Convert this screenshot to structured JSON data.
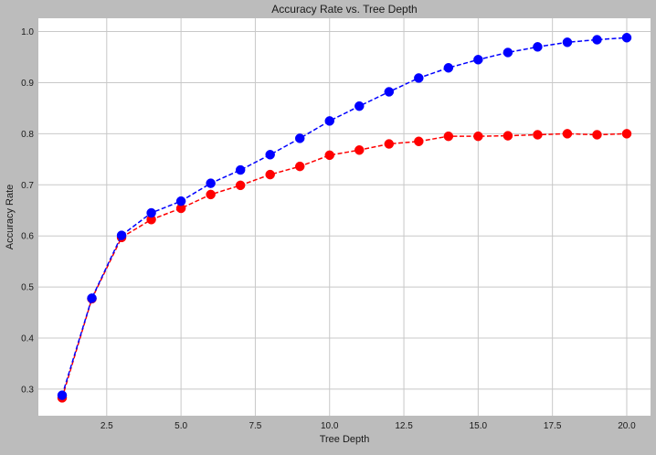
{
  "chart_data": {
    "type": "line",
    "title": "Accuracy Rate vs. Tree Depth",
    "xlabel": "Tree Depth",
    "ylabel": "Accuracy Rate",
    "xlim": [
      0.2,
      20.8
    ],
    "ylim": [
      0.248,
      1.026
    ],
    "xticks": [
      2.5,
      5.0,
      7.5,
      10.0,
      12.5,
      15.0,
      17.5,
      20.0
    ],
    "xtick_labels": [
      "2.5",
      "5.0",
      "7.5",
      "10.0",
      "12.5",
      "15.0",
      "17.5",
      "20.0"
    ],
    "yticks": [
      0.3,
      0.4,
      0.5,
      0.6,
      0.7,
      0.8,
      0.9,
      1.0
    ],
    "ytick_labels": [
      "0.3",
      "0.4",
      "0.5",
      "0.6",
      "0.7",
      "0.8",
      "0.9",
      "1.0"
    ],
    "grid": true,
    "x": [
      1,
      2,
      3,
      4,
      5,
      6,
      7,
      8,
      9,
      10,
      11,
      12,
      13,
      14,
      15,
      16,
      17,
      18,
      19,
      20
    ],
    "series": [
      {
        "color": "#ff0000",
        "marker": "circle",
        "linestyle": "dashed",
        "values": [
          0.283,
          0.477,
          0.597,
          0.632,
          0.654,
          0.681,
          0.699,
          0.72,
          0.736,
          0.758,
          0.768,
          0.78,
          0.785,
          0.795,
          0.795,
          0.796,
          0.798,
          0.8,
          0.798,
          0.8
        ]
      },
      {
        "color": "#0000ff",
        "marker": "circle",
        "linestyle": "dashed",
        "values": [
          0.288,
          0.478,
          0.601,
          0.645,
          0.668,
          0.703,
          0.729,
          0.759,
          0.791,
          0.825,
          0.854,
          0.882,
          0.909,
          0.929,
          0.945,
          0.959,
          0.97,
          0.979,
          0.984,
          0.988
        ]
      }
    ],
    "background_color": "#bcbcbc",
    "plot_background_color": "#ffffff",
    "grid_color": "#c8c8c8"
  }
}
